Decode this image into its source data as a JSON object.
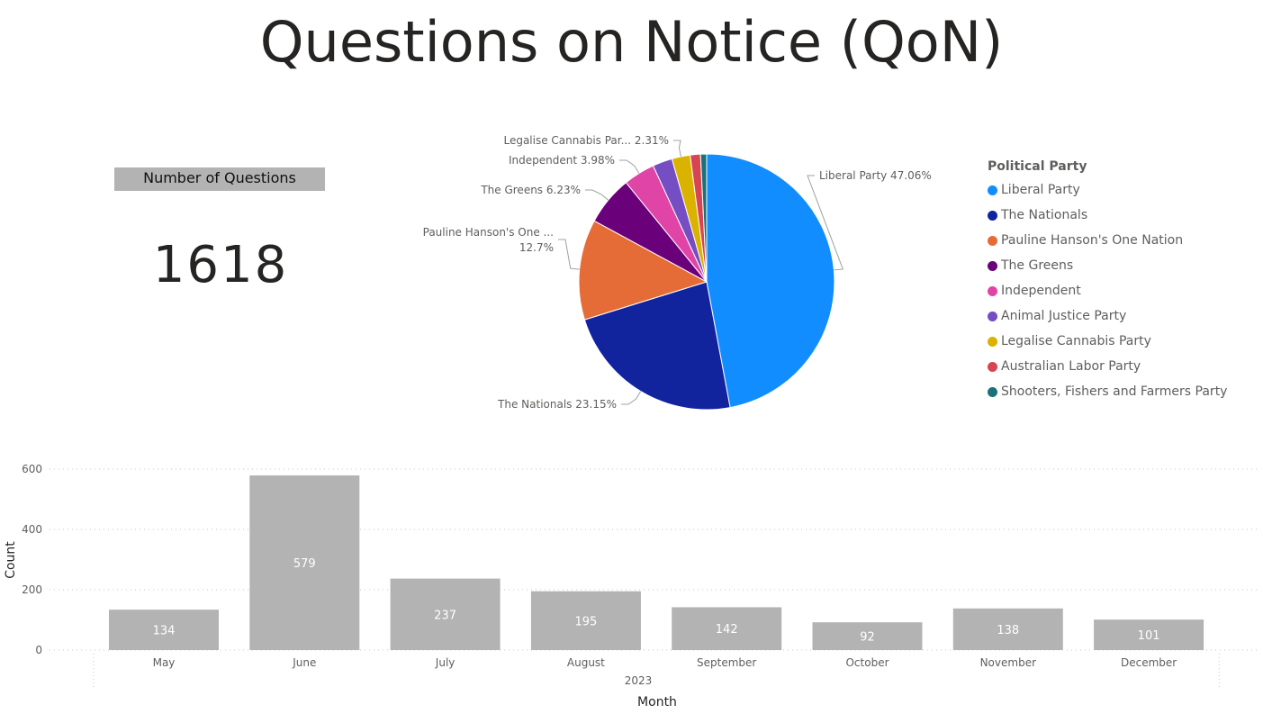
{
  "page": {
    "title": "Questions on Notice (QoN)"
  },
  "card": {
    "label": "Number of Questions",
    "value": "1618"
  },
  "legend": {
    "title": "Political Party",
    "items": [
      {
        "label": "Liberal Party",
        "color": "#118dff"
      },
      {
        "label": "The Nationals",
        "color": "#12239e"
      },
      {
        "label": "Pauline Hanson's One Nation",
        "color": "#e66c37"
      },
      {
        "label": "The Greens",
        "color": "#6b007b"
      },
      {
        "label": "Independent",
        "color": "#e044a7"
      },
      {
        "label": "Animal Justice Party",
        "color": "#744ec2"
      },
      {
        "label": "Legalise Cannabis Party",
        "color": "#d9b300"
      },
      {
        "label": "Australian Labor Party",
        "color": "#d64550"
      },
      {
        "label": "Shooters, Fishers and Farmers Party",
        "color": "#197278"
      }
    ]
  },
  "chart_data": [
    {
      "type": "pie",
      "legend_title": "Political Party",
      "legend_position": "right",
      "slices": [
        {
          "name": "Liberal Party",
          "value": 47.06,
          "label": "Liberal Party 47.06%",
          "color": "#118dff"
        },
        {
          "name": "The Nationals",
          "value": 23.15,
          "label": "The Nationals 23.15%",
          "color": "#12239e"
        },
        {
          "name": "Pauline Hanson's One Nation",
          "value": 12.7,
          "label_line1": "Pauline Hanson's One ...",
          "label_line2": "12.7%",
          "color": "#e66c37"
        },
        {
          "name": "The Greens",
          "value": 6.23,
          "label": "The Greens 6.23%",
          "color": "#6b007b"
        },
        {
          "name": "Independent",
          "value": 3.98,
          "label": "Independent 3.98%",
          "color": "#e044a7"
        },
        {
          "name": "Animal Justice Party",
          "value": 2.5,
          "color": "#744ec2"
        },
        {
          "name": "Legalise Cannabis Party",
          "value": 2.31,
          "label": "Legalise Cannabis Par... 2.31%",
          "color": "#d9b300"
        },
        {
          "name": "Australian Labor Party",
          "value": 1.3,
          "color": "#d64550"
        },
        {
          "name": "Shooters, Fishers and Farmers Party",
          "value": 0.77,
          "color": "#197278"
        }
      ]
    },
    {
      "type": "bar",
      "categories": [
        "May",
        "June",
        "July",
        "August",
        "September",
        "October",
        "November",
        "December"
      ],
      "values": [
        134,
        579,
        237,
        195,
        142,
        92,
        138,
        101
      ],
      "data_labels": [
        "134",
        "579",
        "237",
        "195",
        "142",
        "92",
        "138",
        "101"
      ],
      "year_label": "2023",
      "xlabel": "Month",
      "ylabel": "Count",
      "ylim": [
        0,
        600
      ],
      "yticks": [
        0,
        200,
        400,
        600
      ],
      "ytick_labels": [
        "0",
        "200",
        "400",
        "600"
      ],
      "grid": true,
      "bar_color": "#b3b3b3"
    }
  ]
}
